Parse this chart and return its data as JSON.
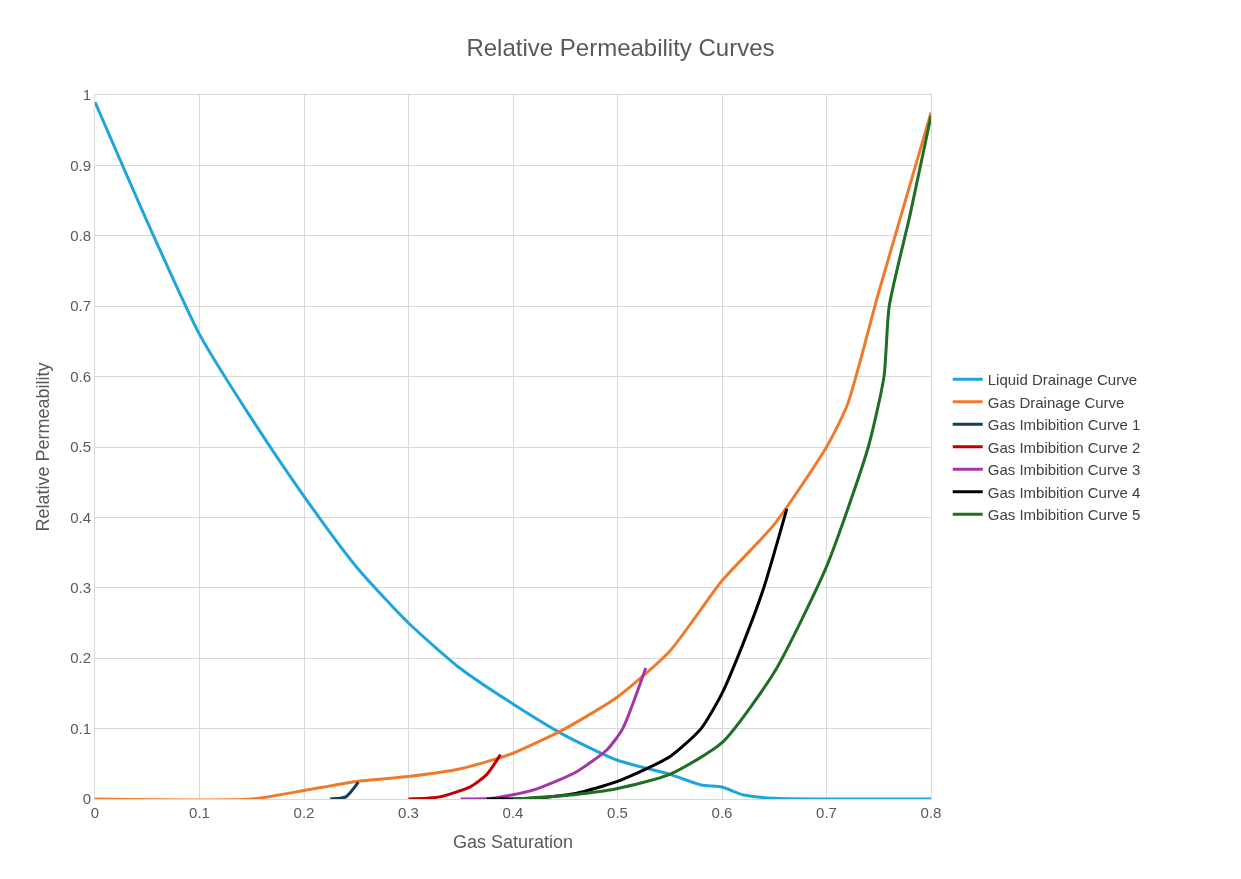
{
  "chart_data": {
    "type": "line",
    "title": "Relative Permeability Curves",
    "xlabel": "Gas Saturation",
    "ylabel": "Relative Permeability",
    "xlim": [
      0,
      0.8
    ],
    "ylim": [
      0,
      1
    ],
    "xticks": [
      0,
      0.1,
      0.2,
      0.3,
      0.4,
      0.5,
      0.6,
      0.7,
      0.8
    ],
    "yticks": [
      0,
      0.1,
      0.2,
      0.3,
      0.4,
      0.5,
      0.6,
      0.7,
      0.8,
      0.9,
      1
    ],
    "grid": true,
    "legend": "right",
    "marker": "none",
    "line_style": "solid",
    "series": [
      {
        "name": "Liquid Drainage Curve",
        "color": "#1fa5dc",
        "x": [
          0,
          0.05,
          0.1,
          0.15,
          0.2,
          0.25,
          0.3,
          0.35,
          0.4,
          0.45,
          0.5,
          0.55,
          0.58,
          0.6,
          0.62,
          0.65,
          0.7,
          0.8
        ],
        "values": [
          0.99,
          0.82,
          0.66,
          0.54,
          0.43,
          0.33,
          0.25,
          0.185,
          0.135,
          0.09,
          0.055,
          0.035,
          0.02,
          0.017,
          0.006,
          0.001,
          0,
          0
        ]
      },
      {
        "name": "Gas Drainage Curve",
        "color": "#f07a2c",
        "x": [
          0,
          0.15,
          0.2,
          0.25,
          0.3,
          0.35,
          0.4,
          0.45,
          0.5,
          0.55,
          0.6,
          0.65,
          0.7,
          0.72,
          0.75,
          0.8
        ],
        "values": [
          0,
          0,
          0.012,
          0.025,
          0.032,
          0.043,
          0.065,
          0.1,
          0.145,
          0.21,
          0.31,
          0.39,
          0.5,
          0.56,
          0.72,
          0.975
        ]
      },
      {
        "name": "Gas Imbibition Curve 1",
        "color": "#163e54",
        "x": [
          0.225,
          0.24,
          0.252
        ],
        "values": [
          0,
          0.003,
          0.024
        ]
      },
      {
        "name": "Gas Imbibition Curve 2",
        "color": "#c00000",
        "x": [
          0.3,
          0.33,
          0.36,
          0.375,
          0.388
        ],
        "values": [
          0,
          0.003,
          0.018,
          0.035,
          0.063
        ]
      },
      {
        "name": "Gas Imbibition Curve 3",
        "color": "#a335a8",
        "x": [
          0.35,
          0.38,
          0.42,
          0.46,
          0.49,
          0.505,
          0.527
        ],
        "values": [
          0,
          0.001,
          0.013,
          0.038,
          0.07,
          0.1,
          0.186
        ]
      },
      {
        "name": "Gas Imbibition Curve 4",
        "color": "#000000",
        "x": [
          0.375,
          0.42,
          0.46,
          0.5,
          0.55,
          0.58,
          0.6,
          0.62,
          0.64,
          0.662
        ],
        "values": [
          0,
          0.001,
          0.008,
          0.025,
          0.06,
          0.1,
          0.15,
          0.22,
          0.3,
          0.412
        ]
      },
      {
        "name": "Gas Imbibition Curve 5",
        "color": "#1e6e23",
        "x": [
          0.4,
          0.45,
          0.5,
          0.55,
          0.6,
          0.65,
          0.7,
          0.74,
          0.755,
          0.76,
          0.78,
          0.8
        ],
        "values": [
          0,
          0.005,
          0.015,
          0.035,
          0.08,
          0.18,
          0.33,
          0.5,
          0.6,
          0.7,
          0.83,
          0.97
        ]
      }
    ]
  }
}
